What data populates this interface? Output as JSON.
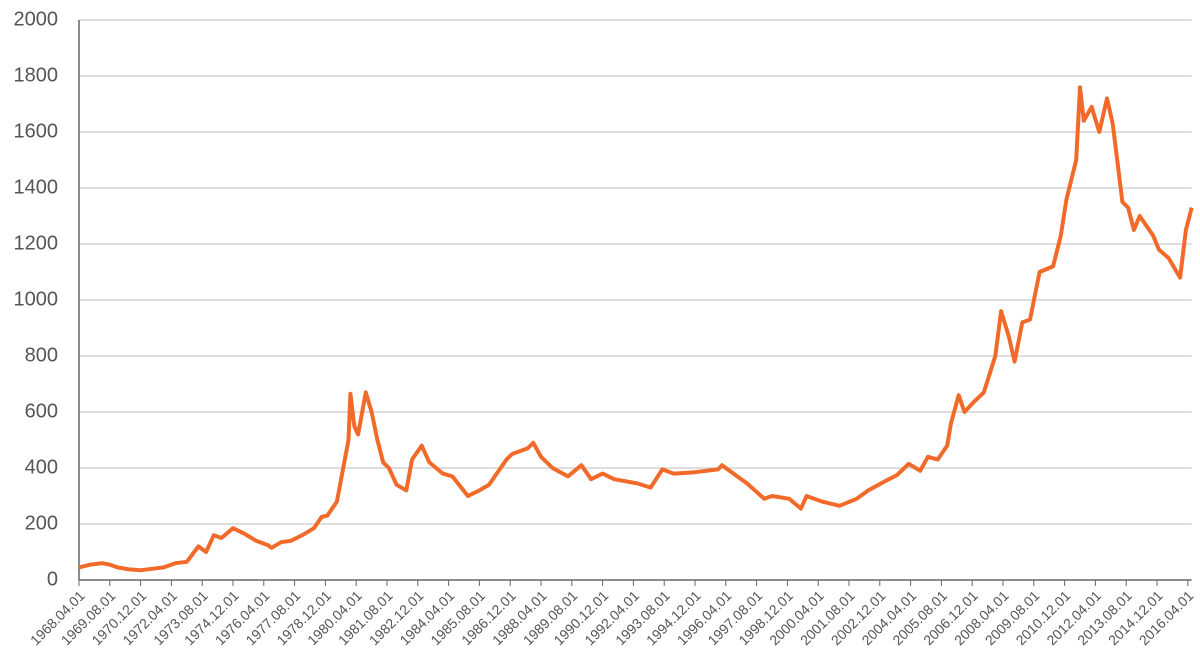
{
  "chart_data": {
    "type": "line",
    "color": "#f26a2a",
    "grid": true,
    "xlim": [
      "1968.04.01",
      "2016.06.01"
    ],
    "xticks": [
      "1968.04.01",
      "1969.08.01",
      "1970.12.01",
      "1972.04.01",
      "1973.08.01",
      "1974.12.01",
      "1976.04.01",
      "1977.08.01",
      "1978.12.01",
      "1980.04.01",
      "1981.08.01",
      "1982.12.01",
      "1984.04.01",
      "1985.08.01",
      "1986.12.01",
      "1988.04.01",
      "1989.08.01",
      "1990.12.01",
      "1992.04.01",
      "1993.08.01",
      "1994.12.01",
      "1996.04.01",
      "1997.08.01",
      "1998.12.01",
      "2000.04.01",
      "2001.08.01",
      "2002.12.01",
      "2004.04.01",
      "2005.08.01",
      "2006.12.01",
      "2008.04.01",
      "2009.08.01",
      "2010.12.01",
      "2012.04.01",
      "2013.08.01",
      "2014.12.01",
      "2016.04.01"
    ],
    "ylim": [
      0,
      2000
    ],
    "yticks": [
      0,
      200,
      400,
      600,
      800,
      1000,
      1200,
      1400,
      1600,
      1800,
      2000
    ],
    "x": [
      "1968.04.01",
      "1968.10.01",
      "1969.04.01",
      "1969.08.01",
      "1969.12.01",
      "1970.06.01",
      "1970.12.01",
      "1971.06.01",
      "1971.12.01",
      "1972.06.01",
      "1972.12.01",
      "1973.06.01",
      "1973.10.01",
      "1974.02.01",
      "1974.06.01",
      "1974.12.01",
      "1975.06.01",
      "1975.12.01",
      "1976.06.01",
      "1976.08.01",
      "1977.01.01",
      "1977.06.01",
      "1977.12.01",
      "1978.06.01",
      "1978.10.01",
      "1979.01.01",
      "1979.06.01",
      "1979.09.01",
      "1979.12.01",
      "1980.01.01",
      "1980.03.01",
      "1980.05.01",
      "1980.09.01",
      "1980.12.01",
      "1981.03.01",
      "1981.06.01",
      "1981.09.01",
      "1982.01.01",
      "1982.06.01",
      "1982.09.01",
      "1983.02.01",
      "1983.06.01",
      "1984.01.01",
      "1984.06.01",
      "1985.02.01",
      "1985.08.01",
      "1986.01.01",
      "1986.10.01",
      "1987.01.01",
      "1987.09.01",
      "1987.12.01",
      "1988.04.01",
      "1988.10.01",
      "1989.06.01",
      "1990.01.01",
      "1990.06.01",
      "1990.12.01",
      "1991.06.01",
      "1992.06.01",
      "1993.01.01",
      "1993.07.01",
      "1994.01.01",
      "1994.12.01",
      "1995.12.01",
      "1996.02.01",
      "1996.08.01",
      "1997.03.01",
      "1997.12.01",
      "1998.04.01",
      "1999.01.01",
      "1999.07.01",
      "1999.10.01",
      "2000.06.01",
      "2001.03.01",
      "2001.12.01",
      "2002.06.01",
      "2003.02.01",
      "2003.09.01",
      "2004.03.01",
      "2004.09.01",
      "2005.01.01",
      "2005.06.01",
      "2005.11.01",
      "2006.01.01",
      "2006.05.01",
      "2006.08.01",
      "2006.12.01",
      "2007.06.01",
      "2007.12.01",
      "2008.03.01",
      "2008.07.01",
      "2008.10.01",
      "2009.02.01",
      "2009.06.01",
      "2009.11.01",
      "2010.06.01",
      "2010.10.01",
      "2011.01.01",
      "2011.06.01",
      "2011.08.01",
      "2011.10.01",
      "2012.02.01",
      "2012.06.01",
      "2012.10.01",
      "2013.01.01",
      "2013.06.01",
      "2013.09.01",
      "2013.12.01",
      "2014.03.01",
      "2014.10.01",
      "2015.01.01",
      "2015.06.01",
      "2015.12.01",
      "2016.03.01",
      "2016.06.01"
    ],
    "values": [
      45,
      55,
      60,
      55,
      45,
      38,
      35,
      40,
      45,
      60,
      65,
      120,
      100,
      160,
      150,
      185,
      165,
      140,
      125,
      115,
      135,
      140,
      160,
      185,
      225,
      230,
      280,
      390,
      500,
      665,
      550,
      520,
      670,
      600,
      500,
      420,
      400,
      340,
      320,
      430,
      480,
      420,
      380,
      370,
      300,
      320,
      340,
      430,
      450,
      470,
      490,
      440,
      400,
      370,
      410,
      360,
      380,
      360,
      345,
      330,
      395,
      380,
      385,
      395,
      410,
      380,
      345,
      290,
      300,
      290,
      255,
      300,
      280,
      265,
      290,
      320,
      350,
      375,
      415,
      390,
      440,
      430,
      480,
      560,
      660,
      600,
      630,
      670,
      800,
      960,
      870,
      780,
      920,
      930,
      1100,
      1120,
      1230,
      1360,
      1500,
      1760,
      1640,
      1690,
      1600,
      1720,
      1630,
      1350,
      1330,
      1250,
      1300,
      1230,
      1180,
      1150,
      1080,
      1250,
      1330
    ]
  }
}
